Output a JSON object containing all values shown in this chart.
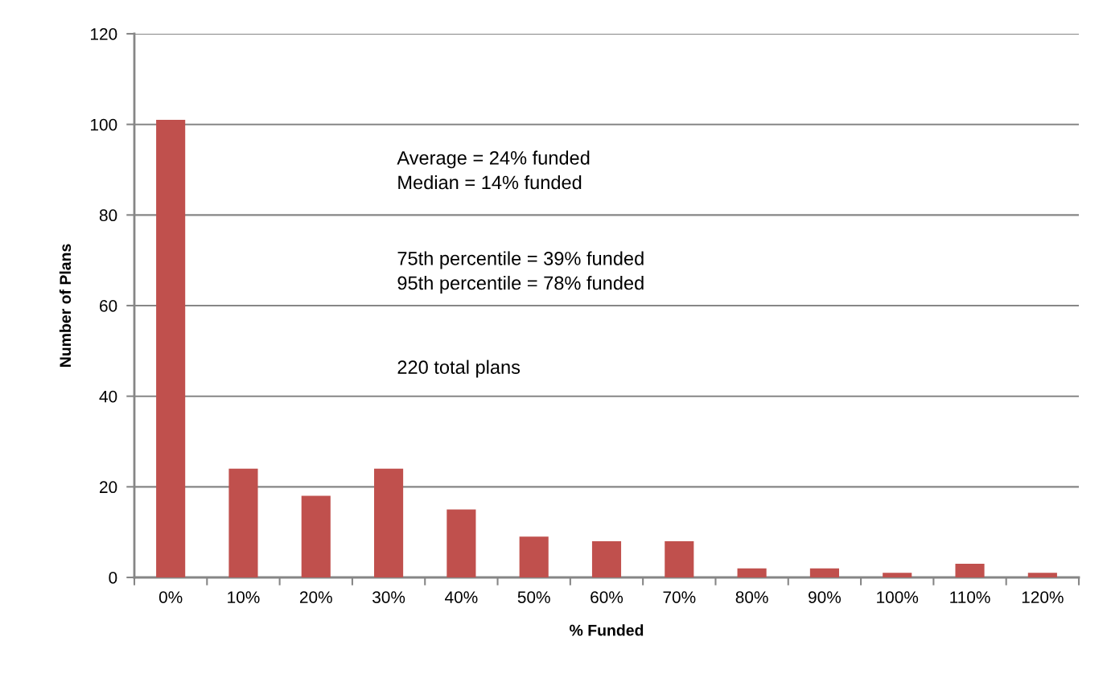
{
  "chart_data": {
    "type": "bar",
    "xlabel": "% Funded",
    "ylabel": "Number of Plans",
    "categories": [
      "0%",
      "10%",
      "20%",
      "30%",
      "40%",
      "50%",
      "60%",
      "70%",
      "80%",
      "90%",
      "100%",
      "110%",
      "120%"
    ],
    "values": [
      101,
      24,
      18,
      24,
      15,
      9,
      8,
      8,
      2,
      2,
      1,
      3,
      1
    ],
    "color": "#c0504d",
    "ylim": [
      0,
      120
    ],
    "yticks": [
      0,
      20,
      40,
      60,
      80,
      100,
      120
    ],
    "grid": "y",
    "annotations": [
      "Average = 24% funded\nMedian = 14% funded",
      "75th percentile = 39% funded\n95th percentile = 78% funded",
      "220 total plans"
    ]
  }
}
